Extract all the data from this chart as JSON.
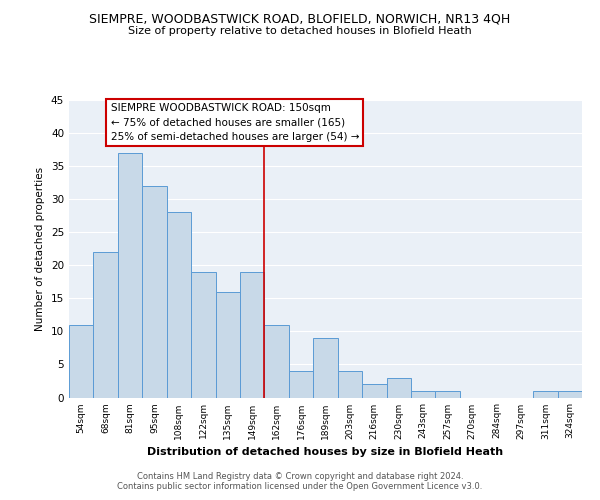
{
  "title": "SIEMPRE, WOODBASTWICK ROAD, BLOFIELD, NORWICH, NR13 4QH",
  "subtitle": "Size of property relative to detached houses in Blofield Heath",
  "xlabel": "Distribution of detached houses by size in Blofield Heath",
  "ylabel": "Number of detached properties",
  "footer_line1": "Contains HM Land Registry data © Crown copyright and database right 2024.",
  "footer_line2": "Contains public sector information licensed under the Open Government Licence v3.0.",
  "bin_labels": [
    "54sqm",
    "68sqm",
    "81sqm",
    "95sqm",
    "108sqm",
    "122sqm",
    "135sqm",
    "149sqm",
    "162sqm",
    "176sqm",
    "189sqm",
    "203sqm",
    "216sqm",
    "230sqm",
    "243sqm",
    "257sqm",
    "270sqm",
    "284sqm",
    "297sqm",
    "311sqm",
    "324sqm"
  ],
  "bar_heights": [
    11,
    22,
    37,
    32,
    28,
    19,
    16,
    19,
    11,
    4,
    9,
    4,
    2,
    3,
    1,
    1,
    0,
    0,
    0,
    1,
    1
  ],
  "bar_color": "#c8d9e8",
  "bar_edge_color": "#5b9bd5",
  "property_label": "SIEMPRE WOODBASTWICK ROAD: 150sqm",
  "annotation_line1": "← 75% of detached houses are smaller (165)",
  "annotation_line2": "25% of semi-detached houses are larger (54) →",
  "vline_color": "#cc0000",
  "vline_x_index": 7.5,
  "annotation_box_color": "#ffffff",
  "annotation_box_edge": "#cc0000",
  "ylim": [
    0,
    45
  ],
  "yticks": [
    0,
    5,
    10,
    15,
    20,
    25,
    30,
    35,
    40,
    45
  ],
  "background_color": "#eaf0f7",
  "fig_background_color": "#ffffff"
}
